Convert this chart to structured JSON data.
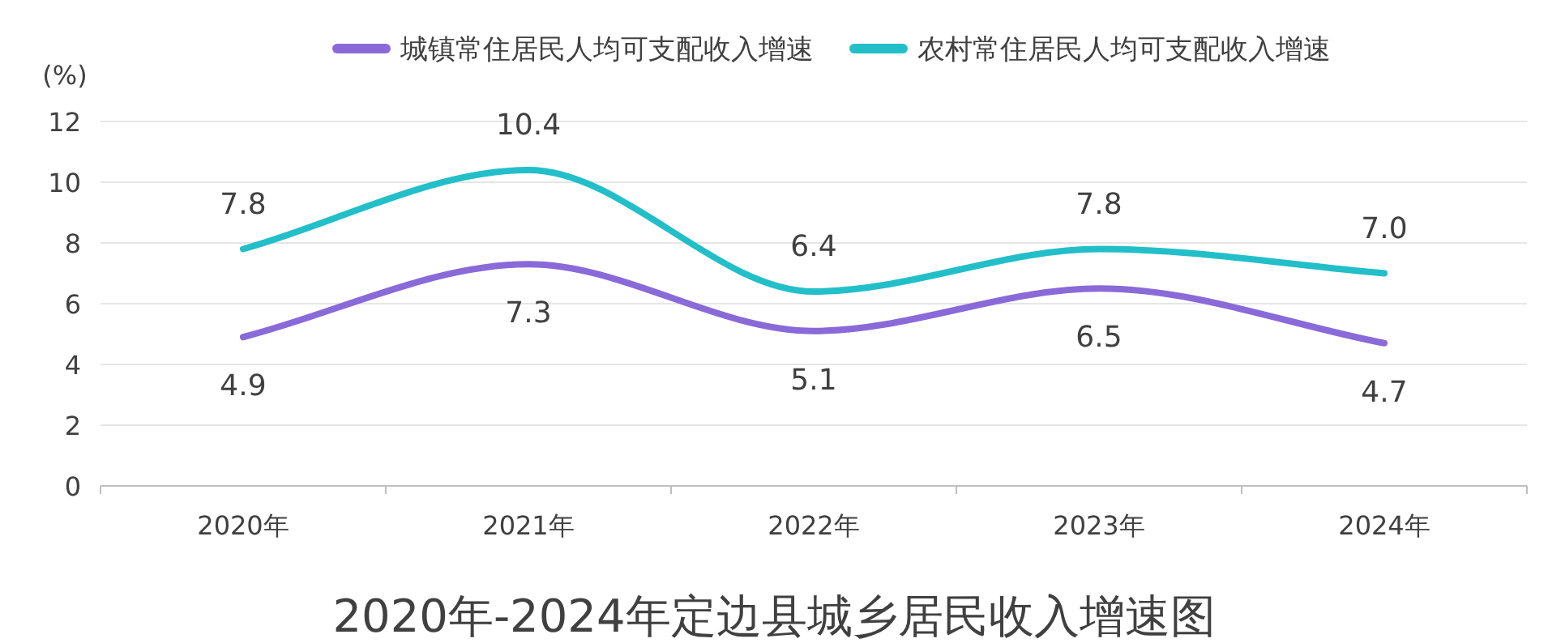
{
  "chart_data": {
    "type": "line",
    "title": "2020年-2024年定边县城乡居民收入增速图",
    "ylabel": "(%)",
    "categories": [
      "2020年",
      "2021年",
      "2022年",
      "2023年",
      "2024年"
    ],
    "series": [
      {
        "name": "城镇常住居民人均可支配收入增速",
        "color": "#8a6ad8",
        "values": [
          4.9,
          7.3,
          5.1,
          6.5,
          4.7
        ],
        "value_labels": [
          "4.9",
          "7.3",
          "5.1",
          "6.5",
          "4.7"
        ]
      },
      {
        "name": "农村常住居民人均可支配收入增速",
        "color": "#22bfc9",
        "values": [
          7.8,
          10.4,
          6.4,
          7.8,
          7.0
        ],
        "value_labels": [
          "7.8",
          "10.4",
          "6.4",
          "7.8",
          "7.0"
        ]
      }
    ],
    "ylim": [
      0,
      12
    ],
    "yticks": [
      0,
      2,
      4,
      6,
      8,
      10,
      12
    ],
    "grid": "y",
    "legend": "top"
  }
}
